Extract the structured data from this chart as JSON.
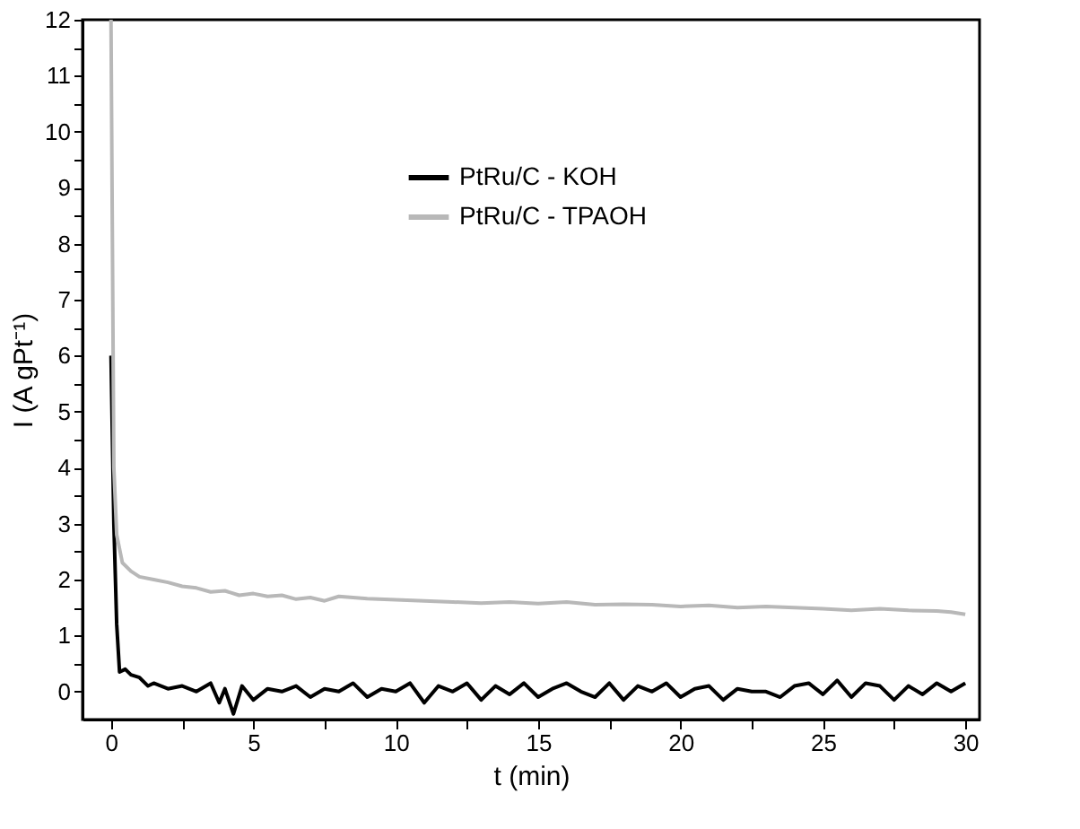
{
  "chart_data": {
    "type": "line",
    "xlabel": "t (min)",
    "ylabel": "I (A gPt⁻¹)",
    "xlim": [
      -1,
      30.5
    ],
    "ylim": [
      -0.5,
      12
    ],
    "xticks": [
      0,
      {
        "value": 2.5,
        "label": null
      },
      5,
      {
        "value": 7.5,
        "label": null
      },
      10,
      {
        "value": 12.5,
        "label": null
      },
      15,
      {
        "value": 17.5,
        "label": null
      },
      20,
      {
        "value": 22.5,
        "label": null
      },
      25,
      {
        "value": 27.5,
        "label": null
      },
      30
    ],
    "yticks": [
      0,
      {
        "value": 0.5,
        "label": null
      },
      1,
      {
        "value": 1.5,
        "label": null
      },
      2,
      {
        "value": 2.5,
        "label": null
      },
      3,
      {
        "value": 3.5,
        "label": null
      },
      4,
      {
        "value": 4.5,
        "label": null
      },
      5,
      {
        "value": 5.5,
        "label": null
      },
      6,
      {
        "value": 6.5,
        "label": null
      },
      7,
      {
        "value": 7.5,
        "label": null
      },
      8,
      {
        "value": 8.5,
        "label": null
      },
      9,
      {
        "value": 9.5,
        "label": null
      },
      10,
      {
        "value": 10.5,
        "label": null
      },
      11,
      {
        "value": 11.5,
        "label": null
      },
      12
    ],
    "grid": false,
    "legend": "top",
    "line_style": "solid",
    "marker": "none",
    "series": [
      {
        "name": "PtRu/C - KOH",
        "color": "#000000",
        "x": [
          0,
          0.1,
          0.2,
          0.3,
          0.5,
          0.7,
          1,
          1.3,
          1.5,
          2,
          2.5,
          3,
          3.5,
          3.8,
          4,
          4.3,
          4.6,
          5,
          5.5,
          6,
          6.5,
          7,
          7.5,
          8,
          8.5,
          9,
          9.5,
          10,
          10.5,
          11,
          11.5,
          12,
          12.5,
          13,
          13.5,
          14,
          14.5,
          15,
          15.5,
          16,
          16.5,
          17,
          17.5,
          18,
          18.5,
          19,
          19.5,
          20,
          20.5,
          21,
          21.5,
          22,
          22.5,
          23,
          23.5,
          24,
          24.5,
          25,
          25.5,
          26,
          26.5,
          27,
          27.5,
          28,
          28.5,
          29,
          29.5,
          30
        ],
        "values": [
          6,
          3,
          1.2,
          0.35,
          0.4,
          0.3,
          0.25,
          0.1,
          0.15,
          0.05,
          0.1,
          0.0,
          0.15,
          -0.2,
          0.05,
          -0.4,
          0.1,
          -0.15,
          0.05,
          0.0,
          0.1,
          -0.1,
          0.05,
          0.0,
          0.15,
          -0.1,
          0.05,
          0.0,
          0.15,
          -0.2,
          0.1,
          0.0,
          0.15,
          -0.15,
          0.1,
          -0.05,
          0.15,
          -0.1,
          0.05,
          0.15,
          0.0,
          -0.1,
          0.15,
          -0.15,
          0.1,
          0.0,
          0.15,
          -0.1,
          0.05,
          0.1,
          -0.15,
          0.05,
          0.0,
          0.0,
          -0.1,
          0.1,
          0.15,
          -0.05,
          0.2,
          -0.1,
          0.15,
          0.1,
          -0.15,
          0.1,
          -0.05,
          0.15,
          0.0,
          0.15
        ]
      },
      {
        "name": "PtRu/C - TPAOH",
        "color": "#b8b8b8",
        "x": [
          0,
          0.05,
          0.1,
          0.2,
          0.4,
          0.7,
          1,
          1.5,
          2,
          2.5,
          3,
          3.5,
          4,
          4.5,
          5,
          5.5,
          6,
          6.5,
          7,
          7.5,
          8,
          9,
          10,
          11,
          12,
          13,
          14,
          15,
          16,
          17,
          18,
          19,
          20,
          21,
          22,
          23,
          24,
          25,
          26,
          27,
          28,
          29,
          29.5,
          30
        ],
        "values": [
          12,
          8,
          4,
          2.8,
          2.3,
          2.15,
          2.05,
          2.0,
          1.95,
          1.88,
          1.85,
          1.78,
          1.8,
          1.72,
          1.75,
          1.7,
          1.72,
          1.65,
          1.68,
          1.62,
          1.7,
          1.66,
          1.64,
          1.62,
          1.6,
          1.58,
          1.6,
          1.57,
          1.6,
          1.55,
          1.56,
          1.55,
          1.52,
          1.54,
          1.5,
          1.52,
          1.5,
          1.48,
          1.45,
          1.48,
          1.45,
          1.44,
          1.42,
          1.38
        ]
      }
    ]
  }
}
